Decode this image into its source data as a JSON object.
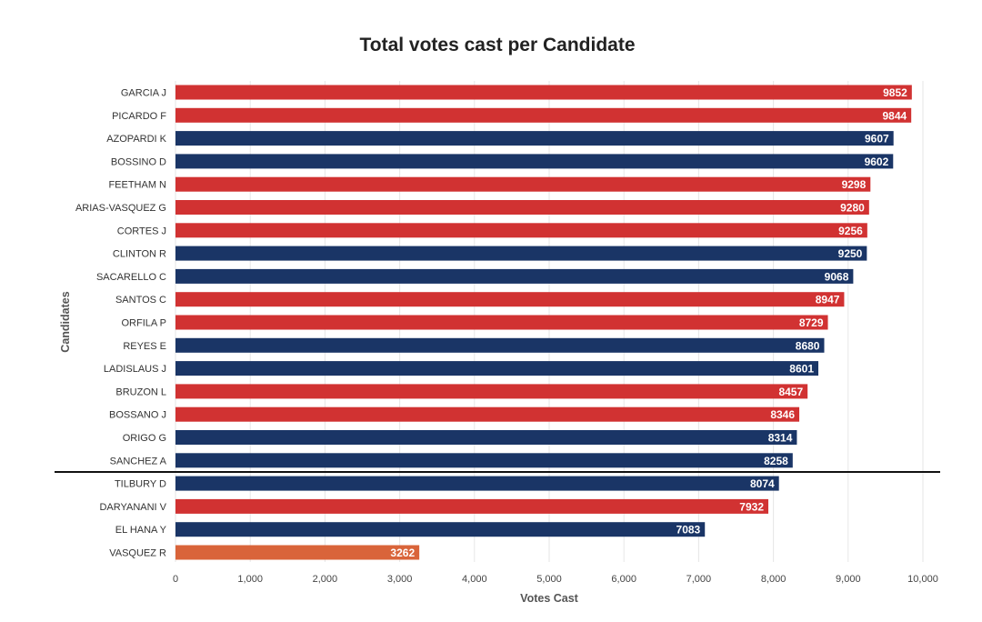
{
  "chart_data": {
    "type": "bar",
    "orientation": "horizontal",
    "title": "Total votes cast per Candidate",
    "xlabel": "Votes Cast",
    "ylabel": "Candidates",
    "xlim": [
      0,
      10000
    ],
    "xticks": [
      0,
      1000,
      2000,
      3000,
      4000,
      5000,
      6000,
      7000,
      8000,
      9000,
      10000
    ],
    "xtick_labels": [
      "0",
      "1,000",
      "2,000",
      "3,000",
      "4,000",
      "5,000",
      "6,000",
      "7,000",
      "8,000",
      "9,000",
      "10,000"
    ],
    "grid": "vertical",
    "data_labels": "inside-end",
    "cutoff_after_rank": 17,
    "colors": {
      "red": "#d13232",
      "navy": "#1a3566",
      "orange": "#d9643a"
    },
    "categories": [
      "GARCIA J",
      "PICARDO F",
      "AZOPARDI K",
      "BOSSINO D",
      "FEETHAM N",
      "ARIAS-VASQUEZ G",
      "CORTES J",
      "CLINTON R",
      "SACARELLO C",
      "SANTOS C",
      "ORFILA P",
      "REYES E",
      "LADISLAUS J",
      "BRUZON L",
      "BOSSANO J",
      "ORIGO G",
      "SANCHEZ A",
      "TILBURY D",
      "DARYANANI V",
      "EL HANA Y",
      "VASQUEZ R"
    ],
    "values": [
      9852,
      9844,
      9607,
      9602,
      9298,
      9280,
      9256,
      9250,
      9068,
      8947,
      8729,
      8680,
      8601,
      8457,
      8346,
      8314,
      8258,
      8074,
      7932,
      7083,
      3262
    ],
    "bar_colors": [
      "red",
      "red",
      "navy",
      "navy",
      "red",
      "red",
      "red",
      "navy",
      "navy",
      "red",
      "red",
      "navy",
      "navy",
      "red",
      "red",
      "navy",
      "navy",
      "navy",
      "red",
      "navy",
      "orange"
    ]
  }
}
